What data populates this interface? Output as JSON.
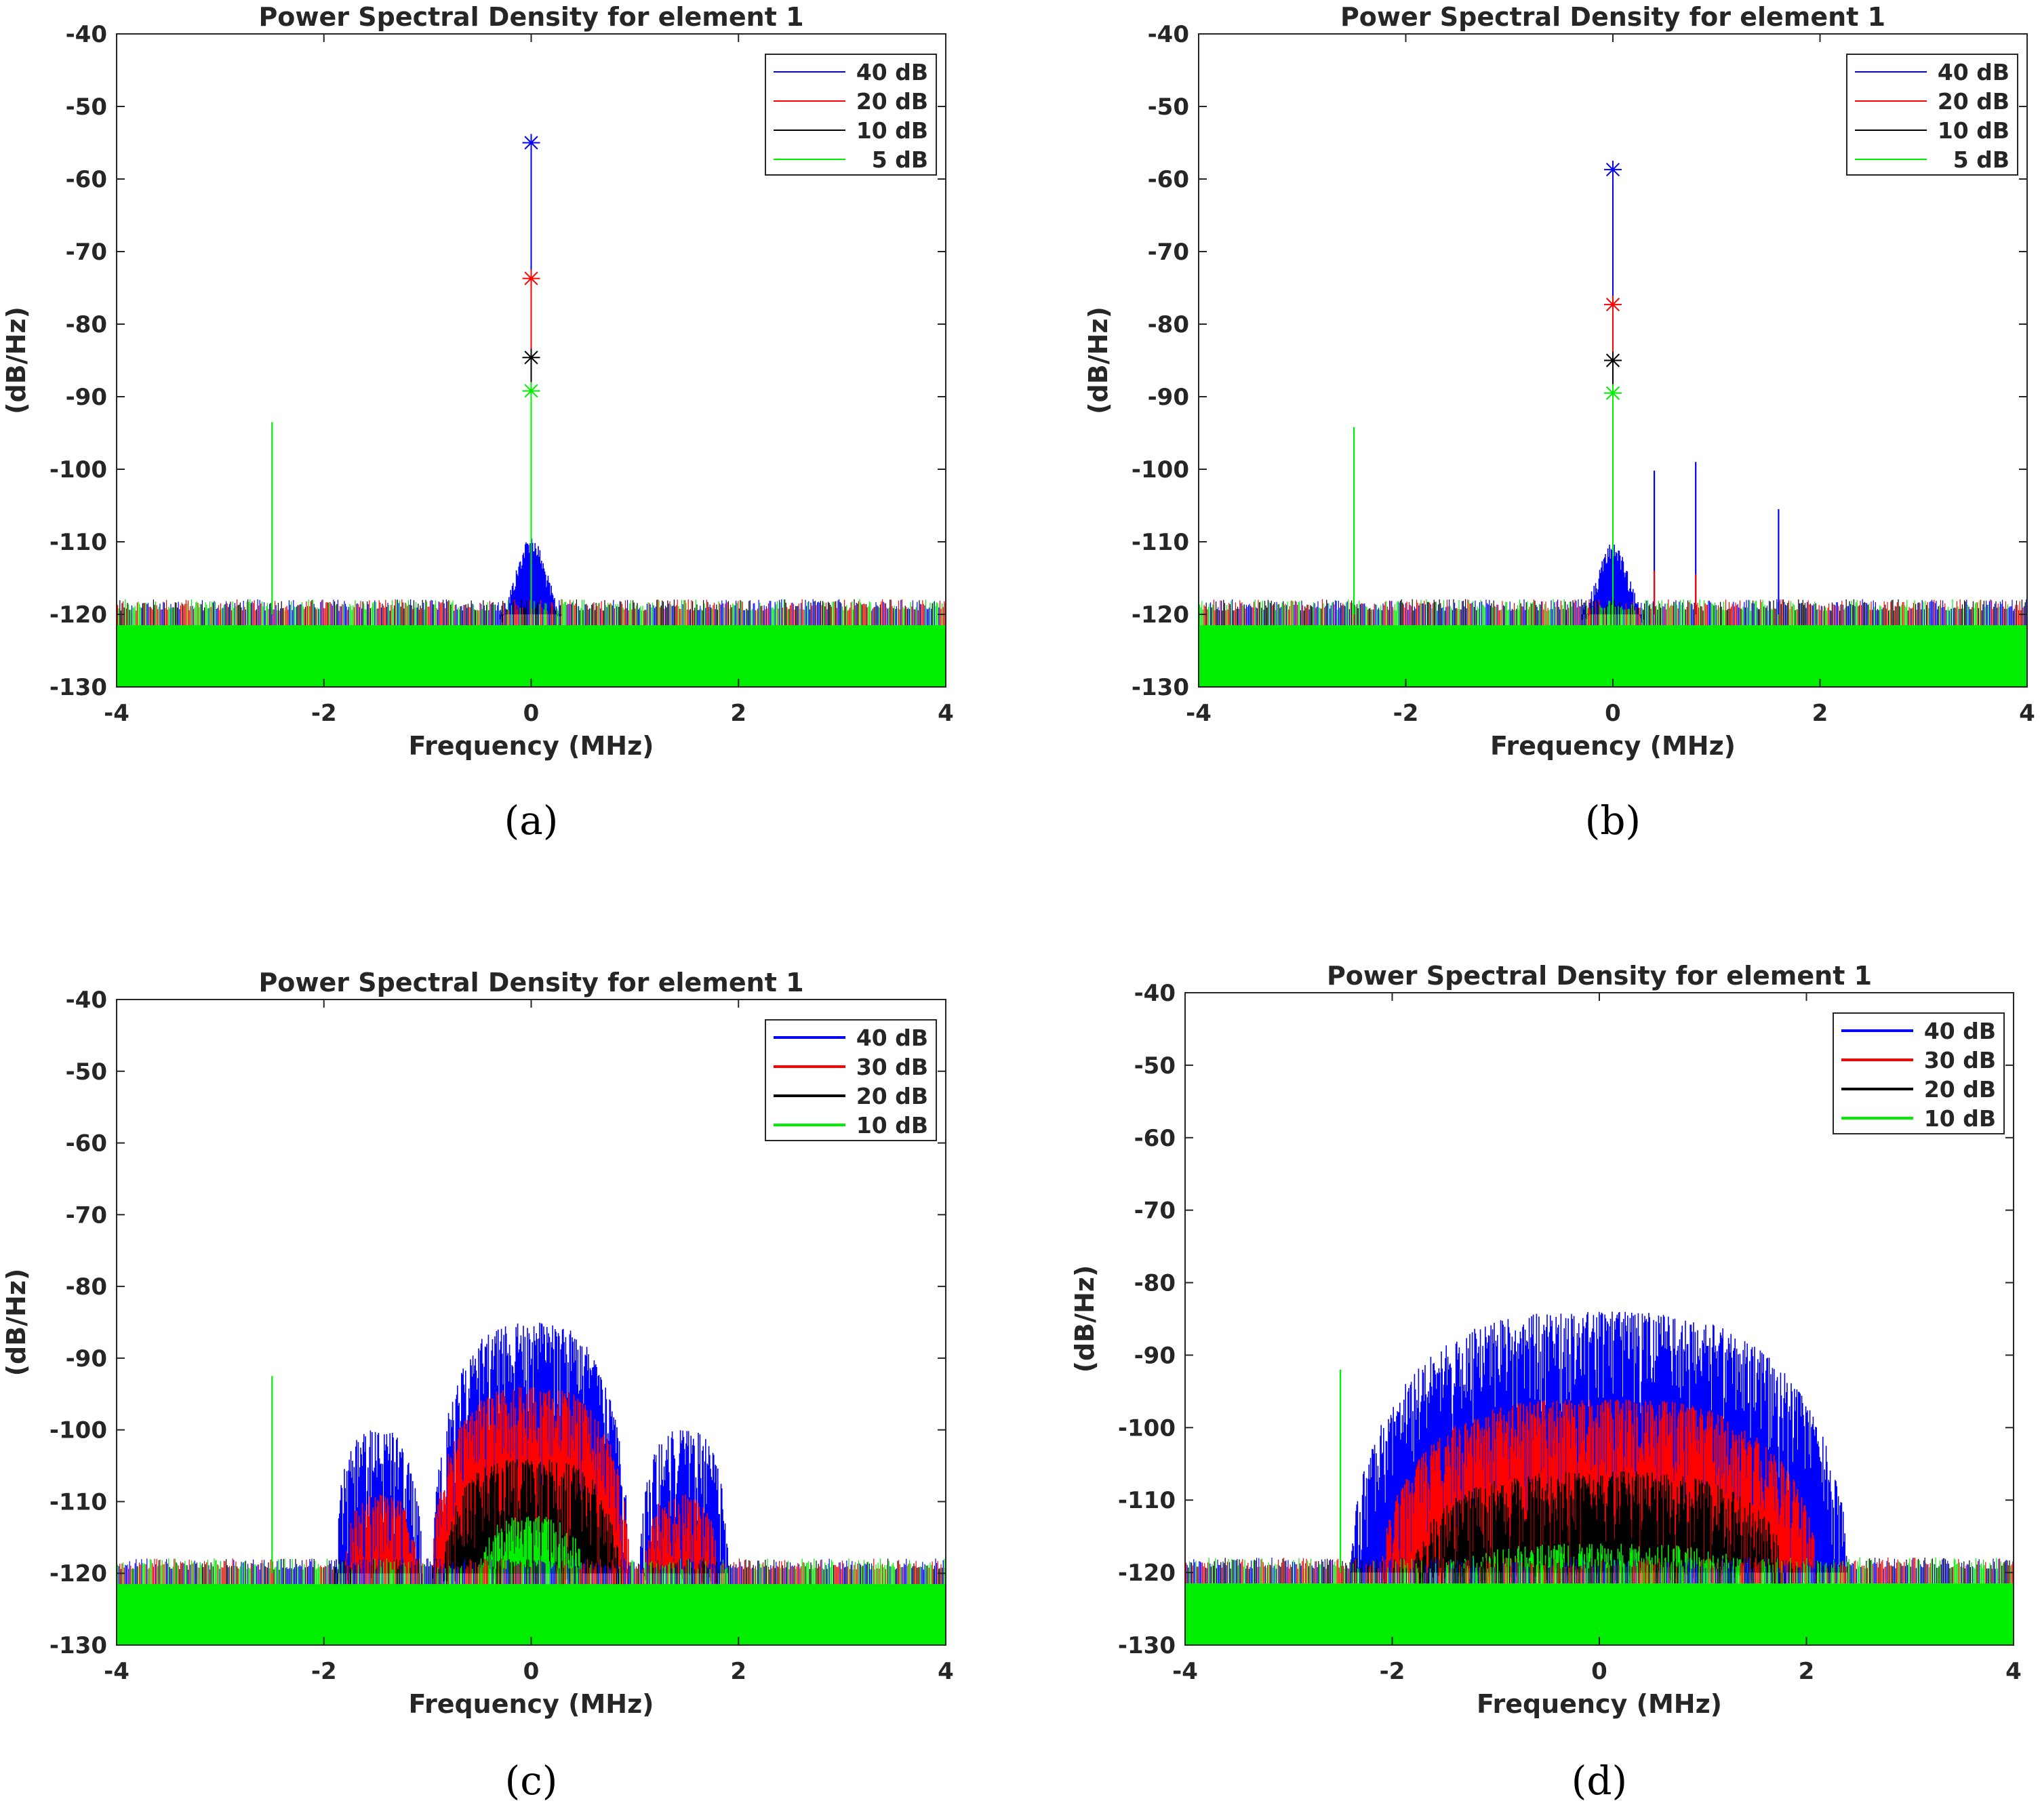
{
  "figure": {
    "panels": [
      {
        "caption": "(a)",
        "legend": [
          "40 dB",
          "20 dB",
          "10 dB",
          "5 dB"
        ],
        "colors": [
          "#0000ff",
          "#ff0000",
          "#000000",
          "#00ee00"
        ]
      },
      {
        "caption": "(b)",
        "legend": [
          "40 dB",
          "20 dB",
          "10 dB",
          "5 dB"
        ],
        "colors": [
          "#0000ff",
          "#ff0000",
          "#000000",
          "#00ee00"
        ]
      },
      {
        "caption": "(c)",
        "legend": [
          "40 dB",
          "30 dB",
          "20 dB",
          "10 dB"
        ],
        "colors": [
          "#0000ff",
          "#ff0000",
          "#000000",
          "#00ee00"
        ]
      },
      {
        "caption": "(d)",
        "legend": [
          "40 dB",
          "30 dB",
          "20 dB",
          "10 dB"
        ],
        "colors": [
          "#0000ff",
          "#ff0000",
          "#000000",
          "#00ee00"
        ]
      }
    ]
  },
  "chart_data": [
    {
      "type": "line",
      "title": "Power Spectral Density for element 1",
      "xlabel": "Frequency (MHz)",
      "ylabel": "(dB/Hz)",
      "xlim": [
        -4,
        4
      ],
      "ylim": [
        -130,
        -40
      ],
      "xticks": [
        -4,
        -2,
        0,
        2,
        4
      ],
      "yticks": [
        -40,
        -50,
        -60,
        -70,
        -80,
        -90,
        -100,
        -110,
        -120,
        -130
      ],
      "noise_floor": -120,
      "series": [
        {
          "name": "40 dB",
          "peak_x": 0,
          "peak_y": -55,
          "skirt_width_mhz": 0.3,
          "skirt_top": -109
        },
        {
          "name": "20 dB",
          "peak_x": 0,
          "peak_y": -73.7
        },
        {
          "name": "10 dB",
          "peak_x": 0,
          "peak_y": -84.6
        },
        {
          "name": "5 dB",
          "peak_x": 0,
          "peak_y": -89.2
        }
      ],
      "spurs": [
        {
          "x": -2.5,
          "y": -93.5,
          "series": "5 dB"
        }
      ]
    },
    {
      "type": "line",
      "title": "Power Spectral Density for element 1",
      "xlabel": "Frequency (MHz)",
      "ylabel": "(dB/Hz)",
      "xlim": [
        -4,
        4
      ],
      "ylim": [
        -130,
        -40
      ],
      "xticks": [
        -4,
        -2,
        0,
        2,
        4
      ],
      "yticks": [
        -40,
        -50,
        -60,
        -70,
        -80,
        -90,
        -100,
        -110,
        -120,
        -130
      ],
      "noise_floor": -120,
      "series": [
        {
          "name": "40 dB",
          "peak_x": 0,
          "peak_y": -58.7,
          "skirt_width_mhz": 0.3,
          "skirt_top": -110
        },
        {
          "name": "20 dB",
          "peak_x": 0,
          "peak_y": -77.3
        },
        {
          "name": "10 dB",
          "peak_x": 0,
          "peak_y": -85
        },
        {
          "name": "5 dB",
          "peak_x": 0,
          "peak_y": -89.5
        }
      ],
      "spurs": [
        {
          "x": -2.5,
          "y": -94.2,
          "series": "5 dB"
        },
        {
          "x": 0.4,
          "y": -100.2,
          "series": "40 dB"
        },
        {
          "x": 0.8,
          "y": -99,
          "series": "40 dB"
        },
        {
          "x": 1.6,
          "y": -105.5,
          "series": "40 dB"
        },
        {
          "x": 0.4,
          "y": -114,
          "series": "20 dB"
        },
        {
          "x": 0.8,
          "y": -114.5,
          "series": "20 dB"
        }
      ]
    },
    {
      "type": "area",
      "title": "Power Spectral Density for element 1",
      "xlabel": "Frequency (MHz)",
      "ylabel": "(dB/Hz)",
      "xlim": [
        -4,
        4
      ],
      "ylim": [
        -130,
        -40
      ],
      "xticks": [
        -4,
        -2,
        0,
        2,
        4
      ],
      "yticks": [
        -40,
        -50,
        -60,
        -70,
        -80,
        -90,
        -100,
        -110,
        -120,
        -130
      ],
      "noise_floor": -120,
      "series": [
        {
          "name": "40 dB",
          "main_lobe": {
            "x0": -0.95,
            "x1": 0.95,
            "peak": -85
          },
          "side_lobes": [
            {
              "x0": -1.9,
              "x1": -1.05,
              "peak": -100
            },
            {
              "x0": 1.05,
              "x1": 1.9,
              "peak": -100
            }
          ]
        },
        {
          "name": "30 dB",
          "main_lobe": {
            "x0": -0.95,
            "x1": 0.95,
            "peak": -94
          },
          "side_lobes": [
            {
              "x0": -1.8,
              "x1": -1.1,
              "peak": -109
            },
            {
              "x0": 1.1,
              "x1": 1.8,
              "peak": -109
            }
          ]
        },
        {
          "name": "20 dB",
          "main_lobe": {
            "x0": -0.85,
            "x1": 0.85,
            "peak": -104
          }
        },
        {
          "name": "10 dB",
          "main_lobe": {
            "x0": -0.5,
            "x1": 0.5,
            "peak": -112
          }
        }
      ],
      "spurs": [
        {
          "x": -2.5,
          "y": -92.5,
          "series": "10 dB"
        }
      ]
    },
    {
      "type": "area",
      "title": "Power Spectral Density for element 1",
      "xlabel": "Frequency (MHz)",
      "ylabel": "(dB/Hz)",
      "xlim": [
        -4,
        4
      ],
      "ylim": [
        -130,
        -40
      ],
      "xticks": [
        -4,
        -2,
        0,
        2,
        4
      ],
      "yticks": [
        -40,
        -50,
        -60,
        -70,
        -80,
        -90,
        -100,
        -110,
        -120,
        -130
      ],
      "noise_floor": -120,
      "series": [
        {
          "name": "40 dB",
          "main_lobe": {
            "x0": -2.4,
            "x1": 2.4,
            "peak": -84
          }
        },
        {
          "name": "30 dB",
          "main_lobe": {
            "x0": -2.1,
            "x1": 2.1,
            "peak": -96
          }
        },
        {
          "name": "20 dB",
          "main_lobe": {
            "x0": -1.8,
            "x1": 1.8,
            "peak": -106
          }
        },
        {
          "name": "10 dB",
          "main_lobe": {
            "x0": -1.5,
            "x1": 1.5,
            "peak": -116
          }
        }
      ],
      "spurs": [
        {
          "x": -2.5,
          "y": -92,
          "series": "10 dB"
        }
      ]
    }
  ]
}
